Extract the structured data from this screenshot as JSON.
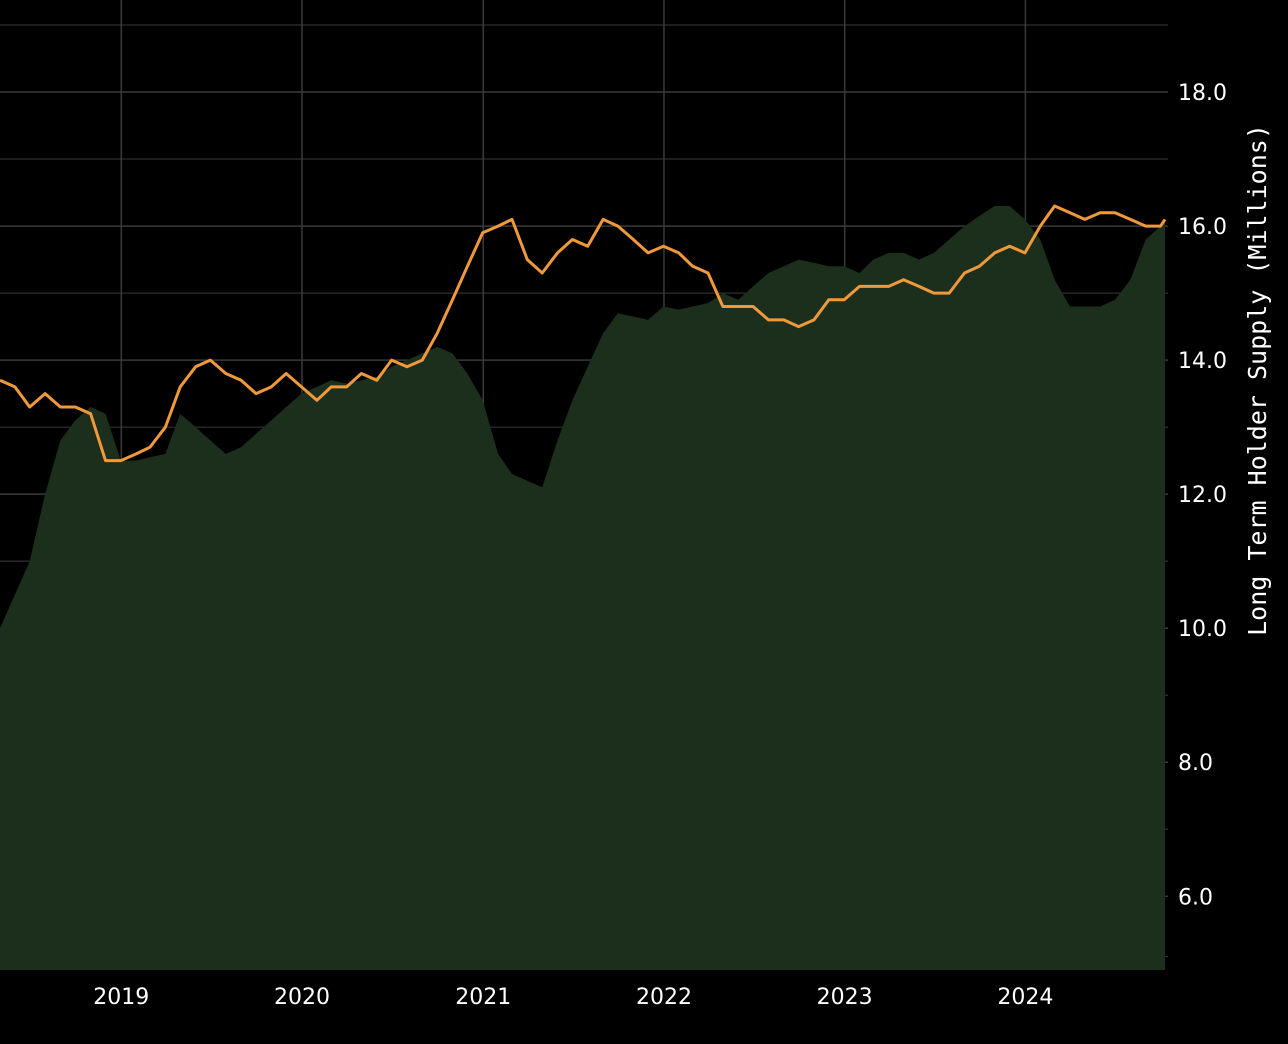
{
  "chart_data": {
    "type": "line",
    "title": "",
    "xlabel": "",
    "ylabel": "Long Term Holder Supply (Millions)",
    "x_tick_labels": [
      "2019",
      "2020",
      "2021",
      "2022",
      "2023",
      "2024"
    ],
    "y_tick_labels": [
      "6.0",
      "8.0",
      "10.0",
      "12.0",
      "14.0",
      "16.0",
      "18.0"
    ],
    "ylim": [
      4.9,
      19.0
    ],
    "xlim": [
      "2018-05-01",
      "2024-10-15"
    ],
    "grid": true,
    "legend": "none",
    "colors": {
      "background": "#000000",
      "area": "#1c2f1c",
      "price_line": "#f0993a",
      "grid": "#3a3a3a"
    },
    "series": [
      {
        "name": "",
        "type": "area",
        "x": [
          "2018-05-01",
          "2018-05-31",
          "2018-06-30",
          "2018-07-31",
          "2018-08-31",
          "2018-09-30",
          "2018-10-31",
          "2018-11-30",
          "2018-12-31",
          "2019-01-31",
          "2019-02-28",
          "2019-03-31",
          "2019-04-30",
          "2019-05-31",
          "2019-06-30",
          "2019-07-31",
          "2019-08-31",
          "2019-09-30",
          "2019-10-31",
          "2019-11-30",
          "2019-12-31",
          "2020-01-31",
          "2020-02-29",
          "2020-03-31",
          "2020-04-30",
          "2020-05-31",
          "2020-06-30",
          "2020-07-31",
          "2020-08-31",
          "2020-09-30",
          "2020-10-31",
          "2020-11-30",
          "2020-12-31",
          "2021-01-31",
          "2021-02-28",
          "2021-03-31",
          "2021-04-30",
          "2021-05-31",
          "2021-06-30",
          "2021-07-31",
          "2021-08-31",
          "2021-09-30",
          "2021-10-31",
          "2021-11-30",
          "2021-12-31",
          "2022-01-31",
          "2022-02-28",
          "2022-03-31",
          "2022-04-30",
          "2022-05-31",
          "2022-06-30",
          "2022-07-31",
          "2022-08-31",
          "2022-09-30",
          "2022-10-31",
          "2022-11-30",
          "2022-12-31",
          "2023-01-31",
          "2023-02-28",
          "2023-03-31",
          "2023-04-30",
          "2023-05-31",
          "2023-06-30",
          "2023-07-31",
          "2023-08-31",
          "2023-09-30",
          "2023-10-31",
          "2023-11-30",
          "2023-12-31",
          "2024-01-31",
          "2024-02-29",
          "2024-03-31",
          "2024-04-30",
          "2024-05-31",
          "2024-06-30",
          "2024-07-31",
          "2024-08-31",
          "2024-09-30",
          "2024-10-09"
        ],
        "values": [
          10.0,
          10.5,
          11.0,
          12.0,
          12.8,
          13.1,
          13.3,
          13.2,
          12.5,
          12.5,
          12.55,
          12.6,
          13.2,
          13.0,
          12.8,
          12.6,
          12.7,
          12.9,
          13.1,
          13.3,
          13.5,
          13.6,
          13.7,
          13.65,
          13.7,
          13.75,
          13.9,
          14.0,
          14.1,
          14.2,
          14.1,
          13.8,
          13.4,
          12.6,
          12.3,
          12.2,
          12.1,
          12.8,
          13.4,
          13.9,
          14.4,
          14.7,
          14.65,
          14.6,
          14.8,
          14.75,
          14.8,
          14.85,
          15.0,
          14.9,
          15.1,
          15.3,
          15.4,
          15.5,
          15.45,
          15.4,
          15.4,
          15.3,
          15.5,
          15.6,
          15.6,
          15.5,
          15.6,
          15.8,
          16.0,
          16.15,
          16.3,
          16.3,
          16.1,
          15.8,
          15.2,
          14.8,
          14.8,
          14.8,
          14.9,
          15.2,
          15.8,
          16.0,
          16.1
        ]
      },
      {
        "name": "",
        "type": "line",
        "x": [
          "2018-05-01",
          "2018-05-31",
          "2018-06-30",
          "2018-07-31",
          "2018-08-31",
          "2018-09-30",
          "2018-10-31",
          "2018-11-30",
          "2018-12-31",
          "2019-01-31",
          "2019-02-28",
          "2019-03-31",
          "2019-04-30",
          "2019-05-31",
          "2019-06-30",
          "2019-07-31",
          "2019-08-31",
          "2019-09-30",
          "2019-10-31",
          "2019-11-30",
          "2019-12-31",
          "2020-01-31",
          "2020-02-29",
          "2020-03-31",
          "2020-04-30",
          "2020-05-31",
          "2020-06-30",
          "2020-07-31",
          "2020-08-31",
          "2020-09-30",
          "2020-10-31",
          "2020-11-30",
          "2020-12-31",
          "2021-01-31",
          "2021-02-28",
          "2021-03-31",
          "2021-04-30",
          "2021-05-31",
          "2021-06-30",
          "2021-07-31",
          "2021-08-31",
          "2021-09-30",
          "2021-10-31",
          "2021-11-30",
          "2021-12-31",
          "2022-01-31",
          "2022-02-28",
          "2022-03-31",
          "2022-04-30",
          "2022-05-31",
          "2022-06-30",
          "2022-07-31",
          "2022-08-31",
          "2022-09-30",
          "2022-10-31",
          "2022-11-30",
          "2022-12-31",
          "2023-01-31",
          "2023-02-28",
          "2023-03-31",
          "2023-04-30",
          "2023-05-31",
          "2023-06-30",
          "2023-07-31",
          "2023-08-31",
          "2023-09-30",
          "2023-10-31",
          "2023-11-30",
          "2023-12-31",
          "2024-01-31",
          "2024-02-29",
          "2024-03-31",
          "2024-04-30",
          "2024-05-31",
          "2024-06-30",
          "2024-07-31",
          "2024-08-31",
          "2024-09-30",
          "2024-10-09"
        ],
        "values": [
          13.7,
          13.6,
          13.3,
          13.5,
          13.3,
          13.3,
          13.2,
          12.5,
          12.5,
          12.6,
          12.7,
          13.0,
          13.6,
          13.9,
          14.0,
          13.8,
          13.7,
          13.5,
          13.6,
          13.8,
          13.6,
          13.4,
          13.6,
          13.6,
          13.8,
          13.7,
          14.0,
          13.9,
          14.0,
          14.4,
          14.9,
          15.4,
          15.9,
          16.0,
          16.1,
          15.5,
          15.3,
          15.6,
          15.8,
          15.7,
          16.1,
          16.0,
          15.8,
          15.6,
          15.7,
          15.6,
          15.4,
          15.3,
          14.8,
          14.8,
          14.8,
          14.6,
          14.6,
          14.5,
          14.6,
          14.9,
          14.9,
          15.1,
          15.1,
          15.1,
          15.2,
          15.1,
          15.0,
          15.0,
          15.3,
          15.4,
          15.6,
          15.7,
          15.6,
          16.0,
          16.3,
          16.2,
          16.1,
          16.2,
          16.2,
          16.1,
          16.0,
          16.0,
          16.1
        ]
      }
    ]
  }
}
